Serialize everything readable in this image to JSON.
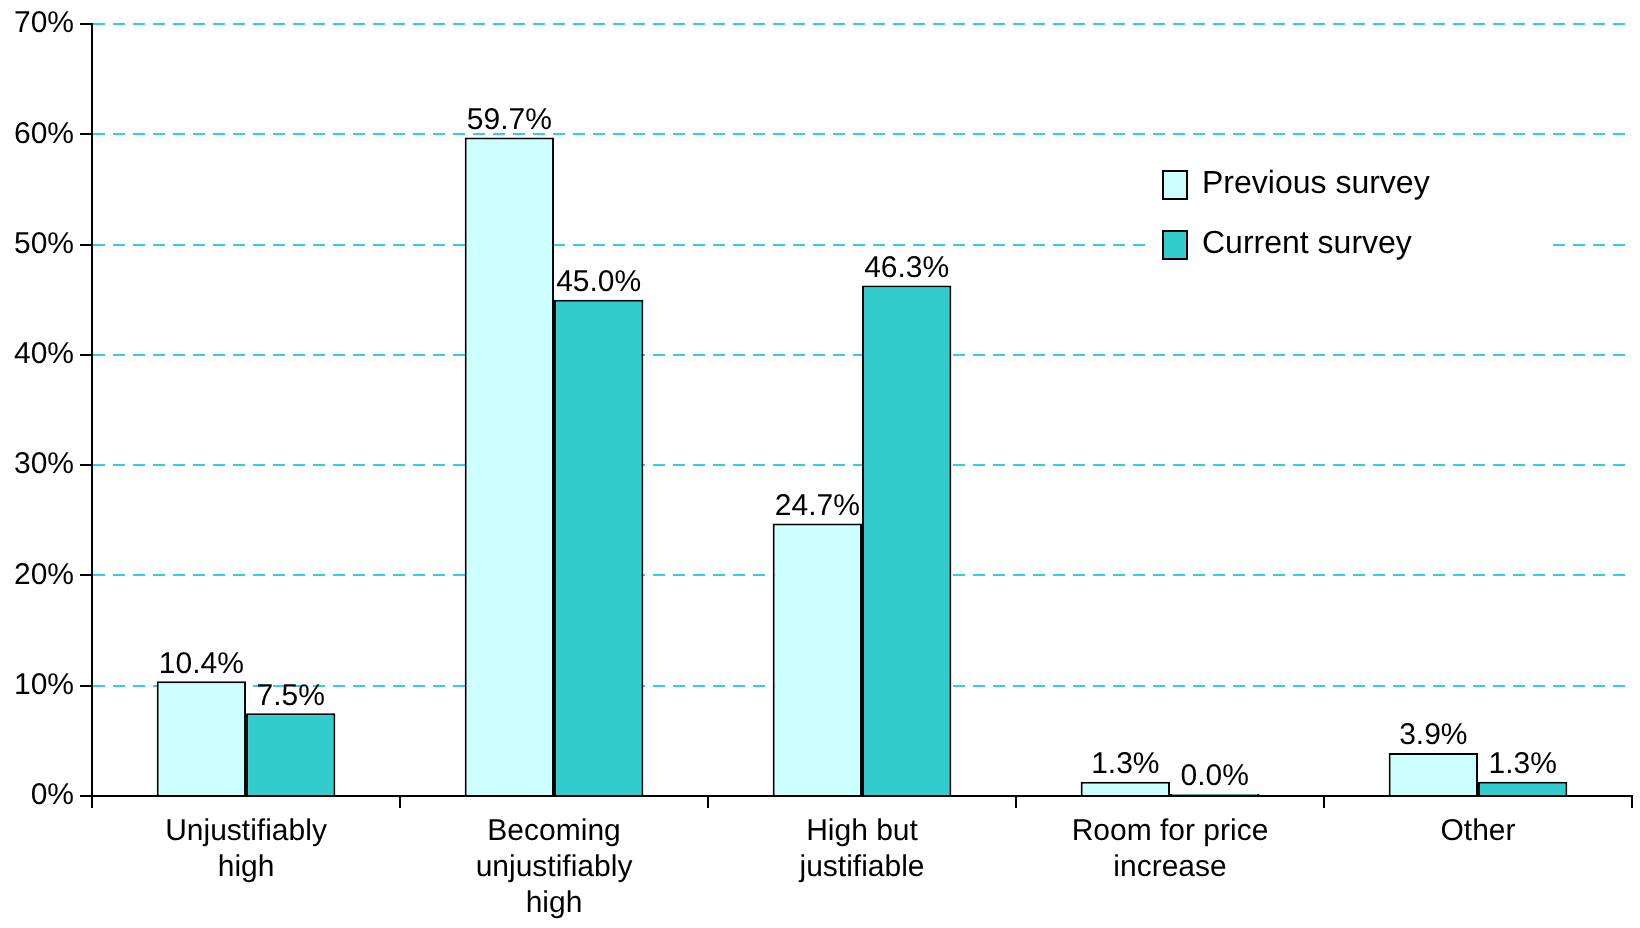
{
  "chart_data": {
    "type": "bar",
    "categories": [
      "Unjustifiably high",
      "Becoming unjustifiably high",
      "High but justifiable",
      "Room for price increase",
      "Other"
    ],
    "series": [
      {
        "name": "Previous survey",
        "color": "#ccffff",
        "values": [
          10.4,
          59.7,
          24.7,
          1.3,
          3.9
        ],
        "value_labels": [
          "10.4%",
          "59.7%",
          "24.7%",
          "1.3%",
          "3.9%"
        ]
      },
      {
        "name": "Current survey",
        "color": "#33cccc",
        "values": [
          7.5,
          45.0,
          46.3,
          0.0,
          1.3
        ],
        "value_labels": [
          "7.5%",
          "45.0%",
          "46.3%",
          "0.0%",
          "1.3%"
        ]
      }
    ],
    "ylim": [
      0,
      70
    ],
    "yticks": [
      {
        "value": 0,
        "label": "0%"
      },
      {
        "value": 10,
        "label": "10%"
      },
      {
        "value": 20,
        "label": "20%"
      },
      {
        "value": 30,
        "label": "30%"
      },
      {
        "value": 40,
        "label": "40%"
      },
      {
        "value": 50,
        "label": "50%"
      },
      {
        "value": 60,
        "label": "60%"
      },
      {
        "value": 70,
        "label": "70%"
      }
    ],
    "grid": "y",
    "legend": "right"
  }
}
